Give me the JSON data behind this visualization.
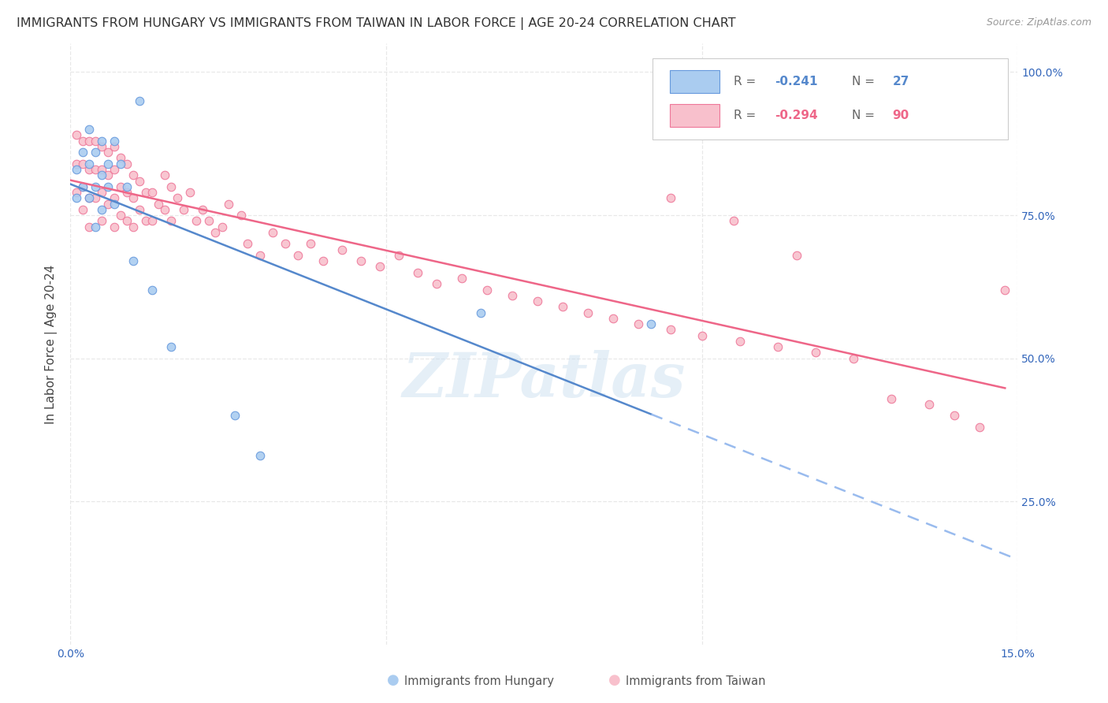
{
  "title": "IMMIGRANTS FROM HUNGARY VS IMMIGRANTS FROM TAIWAN IN LABOR FORCE | AGE 20-24 CORRELATION CHART",
  "source": "Source: ZipAtlas.com",
  "ylabel": "In Labor Force | Age 20-24",
  "xlim": [
    0.0,
    0.15
  ],
  "ylim": [
    0.0,
    1.05
  ],
  "legend_r_hungary": "-0.241",
  "legend_n_hungary": "27",
  "legend_r_taiwan": "-0.294",
  "legend_n_taiwan": "90",
  "color_hungary": "#aaccf0",
  "color_taiwan": "#f8c0cc",
  "edge_hungary": "#6699dd",
  "edge_taiwan": "#ee7799",
  "trendline_hungary_color": "#5588cc",
  "trendline_taiwan_color": "#ee6688",
  "trendline_hungary_dash_color": "#99bbee",
  "watermark": "ZIPatlas",
  "hungary_x": [
    0.001,
    0.001,
    0.002,
    0.002,
    0.003,
    0.003,
    0.003,
    0.004,
    0.004,
    0.004,
    0.005,
    0.005,
    0.005,
    0.006,
    0.006,
    0.007,
    0.007,
    0.008,
    0.009,
    0.01,
    0.011,
    0.013,
    0.016,
    0.026,
    0.03,
    0.065,
    0.092
  ],
  "hungary_y": [
    0.83,
    0.78,
    0.86,
    0.8,
    0.9,
    0.84,
    0.78,
    0.86,
    0.8,
    0.73,
    0.88,
    0.82,
    0.76,
    0.84,
    0.8,
    0.88,
    0.77,
    0.84,
    0.8,
    0.67,
    0.95,
    0.62,
    0.52,
    0.4,
    0.33,
    0.58,
    0.56
  ],
  "taiwan_x": [
    0.001,
    0.001,
    0.001,
    0.002,
    0.002,
    0.002,
    0.002,
    0.003,
    0.003,
    0.003,
    0.003,
    0.004,
    0.004,
    0.004,
    0.005,
    0.005,
    0.005,
    0.005,
    0.006,
    0.006,
    0.006,
    0.007,
    0.007,
    0.007,
    0.007,
    0.008,
    0.008,
    0.008,
    0.009,
    0.009,
    0.009,
    0.01,
    0.01,
    0.01,
    0.011,
    0.011,
    0.012,
    0.012,
    0.013,
    0.013,
    0.014,
    0.015,
    0.015,
    0.016,
    0.016,
    0.017,
    0.018,
    0.019,
    0.02,
    0.021,
    0.022,
    0.023,
    0.024,
    0.025,
    0.027,
    0.028,
    0.03,
    0.032,
    0.034,
    0.036,
    0.038,
    0.04,
    0.043,
    0.046,
    0.049,
    0.052,
    0.055,
    0.058,
    0.062,
    0.066,
    0.07,
    0.074,
    0.078,
    0.082,
    0.086,
    0.09,
    0.095,
    0.1,
    0.106,
    0.112,
    0.118,
    0.124,
    0.13,
    0.136,
    0.14,
    0.144,
    0.148,
    0.095,
    0.105,
    0.115
  ],
  "taiwan_y": [
    0.89,
    0.84,
    0.79,
    0.88,
    0.84,
    0.8,
    0.76,
    0.88,
    0.83,
    0.78,
    0.73,
    0.88,
    0.83,
    0.78,
    0.87,
    0.83,
    0.79,
    0.74,
    0.86,
    0.82,
    0.77,
    0.87,
    0.83,
    0.78,
    0.73,
    0.85,
    0.8,
    0.75,
    0.84,
    0.79,
    0.74,
    0.82,
    0.78,
    0.73,
    0.81,
    0.76,
    0.79,
    0.74,
    0.79,
    0.74,
    0.77,
    0.82,
    0.76,
    0.8,
    0.74,
    0.78,
    0.76,
    0.79,
    0.74,
    0.76,
    0.74,
    0.72,
    0.73,
    0.77,
    0.75,
    0.7,
    0.68,
    0.72,
    0.7,
    0.68,
    0.7,
    0.67,
    0.69,
    0.67,
    0.66,
    0.68,
    0.65,
    0.63,
    0.64,
    0.62,
    0.61,
    0.6,
    0.59,
    0.58,
    0.57,
    0.56,
    0.55,
    0.54,
    0.53,
    0.52,
    0.51,
    0.5,
    0.43,
    0.42,
    0.4,
    0.38,
    0.62,
    0.78,
    0.74,
    0.68
  ],
  "grid_color": "#e8e8e8",
  "background_color": "#ffffff",
  "title_fontsize": 11.5,
  "axis_label_fontsize": 11,
  "tick_fontsize": 10,
  "marker_size": 8,
  "trendline_lw": 1.8
}
